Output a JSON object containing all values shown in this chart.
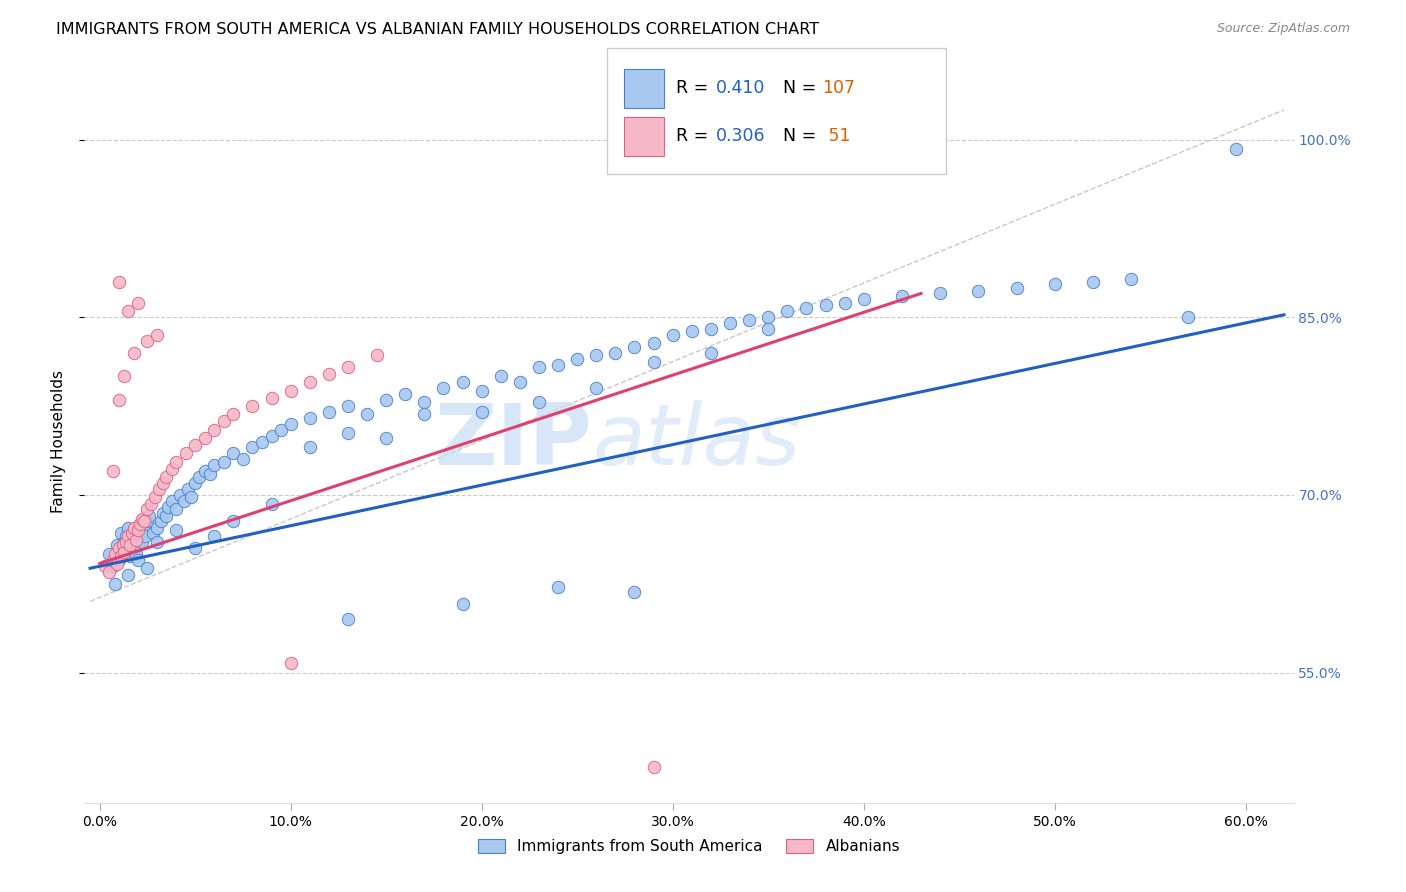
{
  "title": "IMMIGRANTS FROM SOUTH AMERICA VS ALBANIAN FAMILY HOUSEHOLDS CORRELATION CHART",
  "source": "Source: ZipAtlas.com",
  "ylabel": "Family Households",
  "y_ticks": [
    "55.0%",
    "70.0%",
    "85.0%",
    "100.0%"
  ],
  "y_tick_vals": [
    0.55,
    0.7,
    0.85,
    1.0
  ],
  "x_ticks": [
    0.0,
    0.1,
    0.2,
    0.3,
    0.4,
    0.5,
    0.6
  ],
  "legend_blue_R": "0.410",
  "legend_blue_N": "107",
  "legend_pink_R": "0.306",
  "legend_pink_N": "51",
  "legend_label_blue": "Immigrants from South America",
  "legend_label_pink": "Albanians",
  "blue_fill": "#a8c8f0",
  "pink_fill": "#f5b8c8",
  "blue_edge": "#4a80d0",
  "pink_edge": "#e06080",
  "blue_line_color": "#2060c0",
  "pink_line_color": "#e04070",
  "dashed_line_color": "#c8c8c8",
  "watermark": "ZIPatlas",
  "blue_scatter_x": [
    0.005,
    0.007,
    0.009,
    0.01,
    0.011,
    0.012,
    0.013,
    0.014,
    0.015,
    0.016,
    0.017,
    0.018,
    0.019,
    0.02,
    0.021,
    0.022,
    0.023,
    0.024,
    0.025,
    0.026,
    0.028,
    0.03,
    0.032,
    0.033,
    0.035,
    0.036,
    0.038,
    0.04,
    0.042,
    0.044,
    0.046,
    0.048,
    0.05,
    0.052,
    0.055,
    0.058,
    0.06,
    0.065,
    0.07,
    0.075,
    0.08,
    0.085,
    0.09,
    0.095,
    0.1,
    0.11,
    0.12,
    0.13,
    0.14,
    0.15,
    0.16,
    0.17,
    0.18,
    0.19,
    0.2,
    0.21,
    0.22,
    0.23,
    0.24,
    0.25,
    0.26,
    0.27,
    0.28,
    0.29,
    0.3,
    0.31,
    0.32,
    0.33,
    0.34,
    0.35,
    0.36,
    0.37,
    0.38,
    0.39,
    0.4,
    0.42,
    0.44,
    0.46,
    0.48,
    0.5,
    0.52,
    0.54,
    0.57,
    0.595,
    0.008,
    0.015,
    0.02,
    0.025,
    0.03,
    0.04,
    0.05,
    0.06,
    0.07,
    0.09,
    0.11,
    0.13,
    0.15,
    0.17,
    0.2,
    0.23,
    0.26,
    0.29,
    0.32,
    0.35,
    0.13,
    0.19,
    0.24,
    0.28
  ],
  "blue_scatter_y": [
    0.65,
    0.64,
    0.658,
    0.645,
    0.668,
    0.655,
    0.66,
    0.665,
    0.672,
    0.648,
    0.655,
    0.67,
    0.65,
    0.658,
    0.675,
    0.66,
    0.672,
    0.665,
    0.678,
    0.682,
    0.668,
    0.672,
    0.678,
    0.685,
    0.682,
    0.69,
    0.695,
    0.688,
    0.7,
    0.695,
    0.705,
    0.698,
    0.71,
    0.715,
    0.72,
    0.718,
    0.725,
    0.728,
    0.735,
    0.73,
    0.74,
    0.745,
    0.75,
    0.755,
    0.76,
    0.765,
    0.77,
    0.775,
    0.768,
    0.78,
    0.785,
    0.778,
    0.79,
    0.795,
    0.788,
    0.8,
    0.795,
    0.808,
    0.81,
    0.815,
    0.818,
    0.82,
    0.825,
    0.828,
    0.835,
    0.838,
    0.84,
    0.845,
    0.848,
    0.85,
    0.855,
    0.858,
    0.86,
    0.862,
    0.865,
    0.868,
    0.87,
    0.872,
    0.875,
    0.878,
    0.88,
    0.882,
    0.85,
    0.992,
    0.625,
    0.632,
    0.645,
    0.638,
    0.66,
    0.67,
    0.655,
    0.665,
    0.678,
    0.692,
    0.74,
    0.752,
    0.748,
    0.768,
    0.77,
    0.778,
    0.79,
    0.812,
    0.82,
    0.84,
    0.595,
    0.608,
    0.622,
    0.618
  ],
  "pink_scatter_x": [
    0.003,
    0.005,
    0.007,
    0.008,
    0.009,
    0.01,
    0.011,
    0.012,
    0.013,
    0.014,
    0.015,
    0.016,
    0.017,
    0.018,
    0.019,
    0.02,
    0.021,
    0.022,
    0.023,
    0.025,
    0.027,
    0.029,
    0.031,
    0.033,
    0.035,
    0.038,
    0.04,
    0.045,
    0.05,
    0.055,
    0.06,
    0.065,
    0.07,
    0.08,
    0.09,
    0.1,
    0.11,
    0.12,
    0.13,
    0.145,
    0.007,
    0.01,
    0.013,
    0.018,
    0.025,
    0.03,
    0.01,
    0.015,
    0.02,
    0.1,
    0.29
  ],
  "pink_scatter_y": [
    0.64,
    0.635,
    0.645,
    0.65,
    0.642,
    0.655,
    0.648,
    0.658,
    0.652,
    0.66,
    0.665,
    0.658,
    0.668,
    0.672,
    0.662,
    0.67,
    0.675,
    0.68,
    0.678,
    0.688,
    0.692,
    0.698,
    0.705,
    0.71,
    0.715,
    0.722,
    0.728,
    0.735,
    0.742,
    0.748,
    0.755,
    0.762,
    0.768,
    0.775,
    0.782,
    0.788,
    0.795,
    0.802,
    0.808,
    0.818,
    0.72,
    0.78,
    0.8,
    0.82,
    0.83,
    0.835,
    0.88,
    0.855,
    0.862,
    0.558,
    0.47
  ],
  "blue_line_x": [
    -0.005,
    0.62
  ],
  "blue_line_y": [
    0.638,
    0.852
  ],
  "pink_line_x": [
    0.0,
    0.43
  ],
  "pink_line_y": [
    0.642,
    0.87
  ],
  "dashed_line_x": [
    -0.005,
    0.62
  ],
  "dashed_line_y": [
    0.61,
    1.025
  ],
  "ylim": [
    0.44,
    1.05
  ],
  "xlim": [
    -0.008,
    0.625
  ]
}
